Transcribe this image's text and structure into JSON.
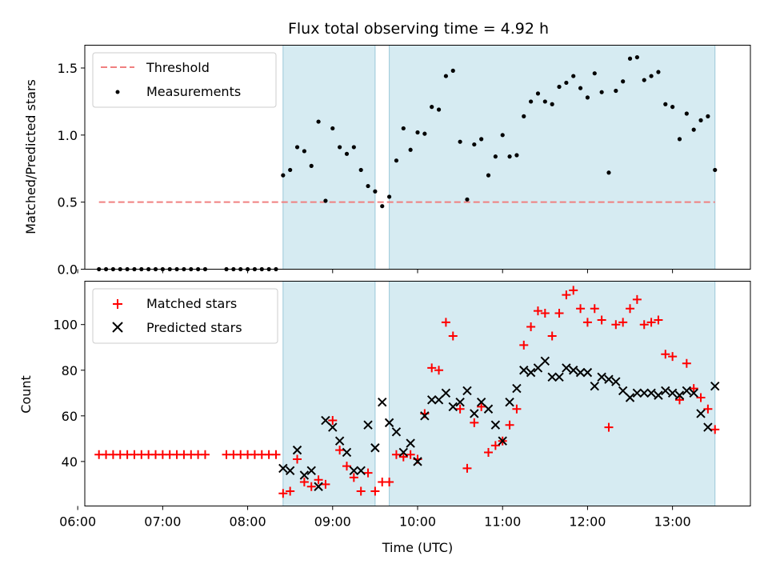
{
  "chart_data": [
    {
      "type": "scatter",
      "title": "Flux total observing time = 4.92 h",
      "ylabel": "Matched/Predicted stars",
      "xlabel": "",
      "x_unit": "time_HH:MM_UTC",
      "xlim": [
        "06:05",
        "13:55"
      ],
      "ylim": [
        0,
        1.67
      ],
      "yticks": [
        0.0,
        0.5,
        1.0,
        1.5
      ],
      "ytick_labels": [
        "0.0",
        "0.5",
        "1.0",
        "1.5"
      ],
      "grid": false,
      "legend": {
        "placement": "top-left",
        "entries": [
          {
            "label": "Threshold",
            "style": "dashed-line",
            "color": "#f08080"
          },
          {
            "label": "Measurements",
            "style": "dot",
            "color": "#000000"
          }
        ]
      },
      "shaded_regions": [
        {
          "start": "08:25",
          "end": "09:30"
        },
        {
          "start": "09:40",
          "end": "13:30"
        }
      ],
      "threshold": {
        "value": 0.5,
        "start": "06:15",
        "end": "13:30",
        "color": "#f08080"
      },
      "series": [
        {
          "name": "Measurements",
          "color": "#000000",
          "points": [
            [
              "06:15",
              0
            ],
            [
              "06:20",
              0
            ],
            [
              "06:25",
              0
            ],
            [
              "06:30",
              0
            ],
            [
              "06:35",
              0
            ],
            [
              "06:40",
              0
            ],
            [
              "06:45",
              0
            ],
            [
              "06:50",
              0
            ],
            [
              "06:55",
              0
            ],
            [
              "07:00",
              0
            ],
            [
              "07:05",
              0
            ],
            [
              "07:10",
              0
            ],
            [
              "07:15",
              0
            ],
            [
              "07:20",
              0
            ],
            [
              "07:25",
              0
            ],
            [
              "07:30",
              0
            ],
            [
              "07:45",
              0
            ],
            [
              "07:50",
              0
            ],
            [
              "07:55",
              0
            ],
            [
              "08:00",
              0
            ],
            [
              "08:05",
              0
            ],
            [
              "08:10",
              0
            ],
            [
              "08:15",
              0
            ],
            [
              "08:20",
              0
            ],
            [
              "08:25",
              0.7
            ],
            [
              "08:30",
              0.74
            ],
            [
              "08:35",
              0.91
            ],
            [
              "08:40",
              0.88
            ],
            [
              "08:45",
              0.77
            ],
            [
              "08:50",
              1.1
            ],
            [
              "08:55",
              0.51
            ],
            [
              "09:00",
              1.05
            ],
            [
              "09:05",
              0.91
            ],
            [
              "09:10",
              0.86
            ],
            [
              "09:15",
              0.91
            ],
            [
              "09:20",
              0.74
            ],
            [
              "09:25",
              0.62
            ],
            [
              "09:30",
              0.58
            ],
            [
              "09:35",
              0.47
            ],
            [
              "09:40",
              0.54
            ],
            [
              "09:45",
              0.81
            ],
            [
              "09:50",
              1.05
            ],
            [
              "09:55",
              0.89
            ],
            [
              "10:00",
              1.02
            ],
            [
              "10:05",
              1.01
            ],
            [
              "10:10",
              1.21
            ],
            [
              "10:15",
              1.19
            ],
            [
              "10:20",
              1.44
            ],
            [
              "10:25",
              1.48
            ],
            [
              "10:30",
              0.95
            ],
            [
              "10:35",
              0.52
            ],
            [
              "10:40",
              0.93
            ],
            [
              "10:45",
              0.97
            ],
            [
              "10:50",
              0.7
            ],
            [
              "10:55",
              0.84
            ],
            [
              "11:00",
              1.0
            ],
            [
              "11:05",
              0.84
            ],
            [
              "11:10",
              0.85
            ],
            [
              "11:15",
              1.14
            ],
            [
              "11:20",
              1.25
            ],
            [
              "11:25",
              1.31
            ],
            [
              "11:30",
              1.25
            ],
            [
              "11:35",
              1.23
            ],
            [
              "11:40",
              1.36
            ],
            [
              "11:45",
              1.39
            ],
            [
              "11:50",
              1.44
            ],
            [
              "11:55",
              1.35
            ],
            [
              "12:00",
              1.28
            ],
            [
              "12:05",
              1.46
            ],
            [
              "12:10",
              1.32
            ],
            [
              "12:15",
              0.72
            ],
            [
              "12:20",
              1.33
            ],
            [
              "12:25",
              1.4
            ],
            [
              "12:30",
              1.57
            ],
            [
              "12:35",
              1.58
            ],
            [
              "12:40",
              1.41
            ],
            [
              "12:45",
              1.44
            ],
            [
              "12:50",
              1.47
            ],
            [
              "12:55",
              1.23
            ],
            [
              "13:00",
              1.21
            ],
            [
              "13:05",
              0.97
            ],
            [
              "13:10",
              1.16
            ],
            [
              "13:15",
              1.04
            ],
            [
              "13:20",
              1.11
            ],
            [
              "13:25",
              1.14
            ],
            [
              "13:30",
              0.74
            ]
          ]
        }
      ]
    },
    {
      "type": "scatter",
      "title": "",
      "xlabel": "Time (UTC)",
      "ylabel": "Count",
      "x_unit": "time_HH:MM_UTC",
      "xlim": [
        "06:05",
        "13:55"
      ],
      "ylim": [
        20.5,
        119
      ],
      "xticks": [
        "06:00",
        "07:00",
        "08:00",
        "09:00",
        "10:00",
        "11:00",
        "12:00",
        "13:00"
      ],
      "yticks": [
        40,
        60,
        80,
        100
      ],
      "ytick_labels": [
        "40",
        "60",
        "80",
        "100"
      ],
      "grid": false,
      "legend": {
        "placement": "top-left",
        "entries": [
          {
            "label": "Matched stars",
            "style": "plus",
            "color": "#ff0000"
          },
          {
            "label": "Predicted stars",
            "style": "x",
            "color": "#000000"
          }
        ]
      },
      "shaded_regions": [
        {
          "start": "08:25",
          "end": "09:30"
        },
        {
          "start": "09:40",
          "end": "13:30"
        }
      ],
      "series": [
        {
          "name": "Matched stars",
          "color": "#ff0000",
          "marker": "plus",
          "points": [
            [
              "06:15",
              43
            ],
            [
              "06:20",
              43
            ],
            [
              "06:25",
              43
            ],
            [
              "06:30",
              43
            ],
            [
              "06:35",
              43
            ],
            [
              "06:40",
              43
            ],
            [
              "06:45",
              43
            ],
            [
              "06:50",
              43
            ],
            [
              "06:55",
              43
            ],
            [
              "07:00",
              43
            ],
            [
              "07:05",
              43
            ],
            [
              "07:10",
              43
            ],
            [
              "07:15",
              43
            ],
            [
              "07:20",
              43
            ],
            [
              "07:25",
              43
            ],
            [
              "07:30",
              43
            ],
            [
              "07:45",
              43
            ],
            [
              "07:50",
              43
            ],
            [
              "07:55",
              43
            ],
            [
              "08:00",
              43
            ],
            [
              "08:05",
              43
            ],
            [
              "08:10",
              43
            ],
            [
              "08:15",
              43
            ],
            [
              "08:20",
              43
            ],
            [
              "08:25",
              26
            ],
            [
              "08:30",
              27
            ],
            [
              "08:35",
              41
            ],
            [
              "08:40",
              31
            ],
            [
              "08:45",
              29
            ],
            [
              "08:50",
              32
            ],
            [
              "08:55",
              30
            ],
            [
              "09:00",
              58
            ],
            [
              "09:05",
              45
            ],
            [
              "09:10",
              38
            ],
            [
              "09:15",
              33
            ],
            [
              "09:20",
              27
            ],
            [
              "09:25",
              35
            ],
            [
              "09:30",
              27
            ],
            [
              "09:35",
              31
            ],
            [
              "09:40",
              31
            ],
            [
              "09:45",
              43
            ],
            [
              "09:50",
              42
            ],
            [
              "09:55",
              43
            ],
            [
              "10:00",
              41
            ],
            [
              "10:05",
              61
            ],
            [
              "10:10",
              81
            ],
            [
              "10:15",
              80
            ],
            [
              "10:20",
              101
            ],
            [
              "10:25",
              95
            ],
            [
              "10:30",
              63
            ],
            [
              "10:35",
              37
            ],
            [
              "10:40",
              57
            ],
            [
              "10:45",
              64
            ],
            [
              "10:50",
              44
            ],
            [
              "10:55",
              47
            ],
            [
              "11:00",
              49
            ],
            [
              "11:05",
              56
            ],
            [
              "11:10",
              63
            ],
            [
              "11:15",
              91
            ],
            [
              "11:20",
              99
            ],
            [
              "11:25",
              106
            ],
            [
              "11:30",
              105
            ],
            [
              "11:35",
              95
            ],
            [
              "11:40",
              105
            ],
            [
              "11:45",
              113
            ],
            [
              "11:50",
              115
            ],
            [
              "11:55",
              107
            ],
            [
              "12:00",
              101
            ],
            [
              "12:05",
              107
            ],
            [
              "12:10",
              102
            ],
            [
              "12:15",
              55
            ],
            [
              "12:20",
              100
            ],
            [
              "12:25",
              101
            ],
            [
              "12:30",
              107
            ],
            [
              "12:35",
              111
            ],
            [
              "12:40",
              100
            ],
            [
              "12:45",
              101
            ],
            [
              "12:50",
              102
            ],
            [
              "12:55",
              87
            ],
            [
              "13:00",
              86
            ],
            [
              "13:05",
              67
            ],
            [
              "13:10",
              83
            ],
            [
              "13:15",
              72
            ],
            [
              "13:20",
              68
            ],
            [
              "13:25",
              63
            ],
            [
              "13:30",
              54
            ]
          ]
        },
        {
          "name": "Predicted stars",
          "color": "#000000",
          "marker": "x",
          "points": [
            [
              "08:25",
              37
            ],
            [
              "08:30",
              36
            ],
            [
              "08:35",
              45
            ],
            [
              "08:40",
              34
            ],
            [
              "08:45",
              36
            ],
            [
              "08:50",
              29
            ],
            [
              "08:55",
              58
            ],
            [
              "09:00",
              55
            ],
            [
              "09:05",
              49
            ],
            [
              "09:10",
              44
            ],
            [
              "09:15",
              36
            ],
            [
              "09:20",
              36
            ],
            [
              "09:25",
              56
            ],
            [
              "09:30",
              46
            ],
            [
              "09:35",
              66
            ],
            [
              "09:40",
              57
            ],
            [
              "09:45",
              53
            ],
            [
              "09:50",
              44
            ],
            [
              "09:55",
              48
            ],
            [
              "10:00",
              40
            ],
            [
              "10:05",
              60
            ],
            [
              "10:10",
              67
            ],
            [
              "10:15",
              67
            ],
            [
              "10:20",
              70
            ],
            [
              "10:25",
              64
            ],
            [
              "10:30",
              66
            ],
            [
              "10:35",
              71
            ],
            [
              "10:40",
              61
            ],
            [
              "10:45",
              66
            ],
            [
              "10:50",
              63
            ],
            [
              "10:55",
              56
            ],
            [
              "11:00",
              49
            ],
            [
              "11:05",
              66
            ],
            [
              "11:10",
              72
            ],
            [
              "11:15",
              80
            ],
            [
              "11:20",
              79
            ],
            [
              "11:25",
              81
            ],
            [
              "11:30",
              84
            ],
            [
              "11:35",
              77
            ],
            [
              "11:40",
              77
            ],
            [
              "11:45",
              81
            ],
            [
              "11:50",
              80
            ],
            [
              "11:55",
              79
            ],
            [
              "12:00",
              79
            ],
            [
              "12:05",
              73
            ],
            [
              "12:10",
              77
            ],
            [
              "12:15",
              76
            ],
            [
              "12:20",
              75
            ],
            [
              "12:25",
              71
            ],
            [
              "12:30",
              68
            ],
            [
              "12:35",
              70
            ],
            [
              "12:40",
              70
            ],
            [
              "12:45",
              70
            ],
            [
              "12:50",
              69
            ],
            [
              "12:55",
              71
            ],
            [
              "13:00",
              70
            ],
            [
              "13:05",
              69
            ],
            [
              "13:10",
              71
            ],
            [
              "13:15",
              70
            ],
            [
              "13:20",
              61
            ],
            [
              "13:25",
              55
            ],
            [
              "13:30",
              73
            ]
          ]
        }
      ]
    }
  ]
}
